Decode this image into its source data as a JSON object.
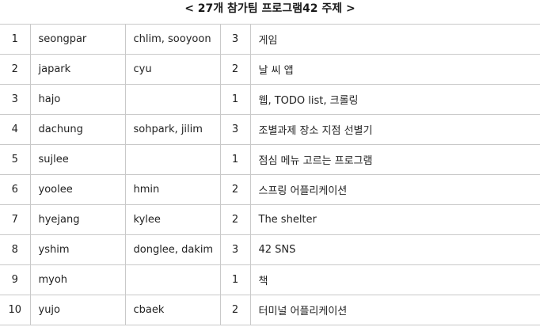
{
  "title": "< 27개 참가팀 프로그램42 주제 >",
  "rows": [
    {
      "no": "1",
      "leader": "seongpar",
      "members": "chlim, sooyoon",
      "count": "3",
      "topic": "게임"
    },
    {
      "no": "2",
      "leader": "japark",
      "members": "cyu",
      "count": "2",
      "topic": "날 씨 앱"
    },
    {
      "no": "3",
      "leader": "hajo",
      "members": "",
      "count": "1",
      "topic": "웹, TODO list, 크롤링"
    },
    {
      "no": "4",
      "leader": "dachung",
      "members": "sohpark, jilim",
      "count": "3",
      "topic": "조별과제 장소 지점 선별기"
    },
    {
      "no": "5",
      "leader": "sujlee",
      "members": "",
      "count": "1",
      "topic": "점심 메뉴 고르는 프로그램"
    },
    {
      "no": "6",
      "leader": "yoolee",
      "members": "hmin",
      "count": "2",
      "topic": "스프링 어플리케이션"
    },
    {
      "no": "7",
      "leader": "hyejang",
      "members": "kylee",
      "count": "2",
      "topic": "The shelter"
    },
    {
      "no": "8",
      "leader": "yshim",
      "members": "donglee, dakim",
      "count": "3",
      "topic": "42 SNS"
    },
    {
      "no": "9",
      "leader": "myoh",
      "members": "",
      "count": "1",
      "topic": "책"
    },
    {
      "no": "10",
      "leader": "yujo",
      "members": "cbaek",
      "count": "2",
      "topic": "터미널 어플리케이션"
    }
  ]
}
